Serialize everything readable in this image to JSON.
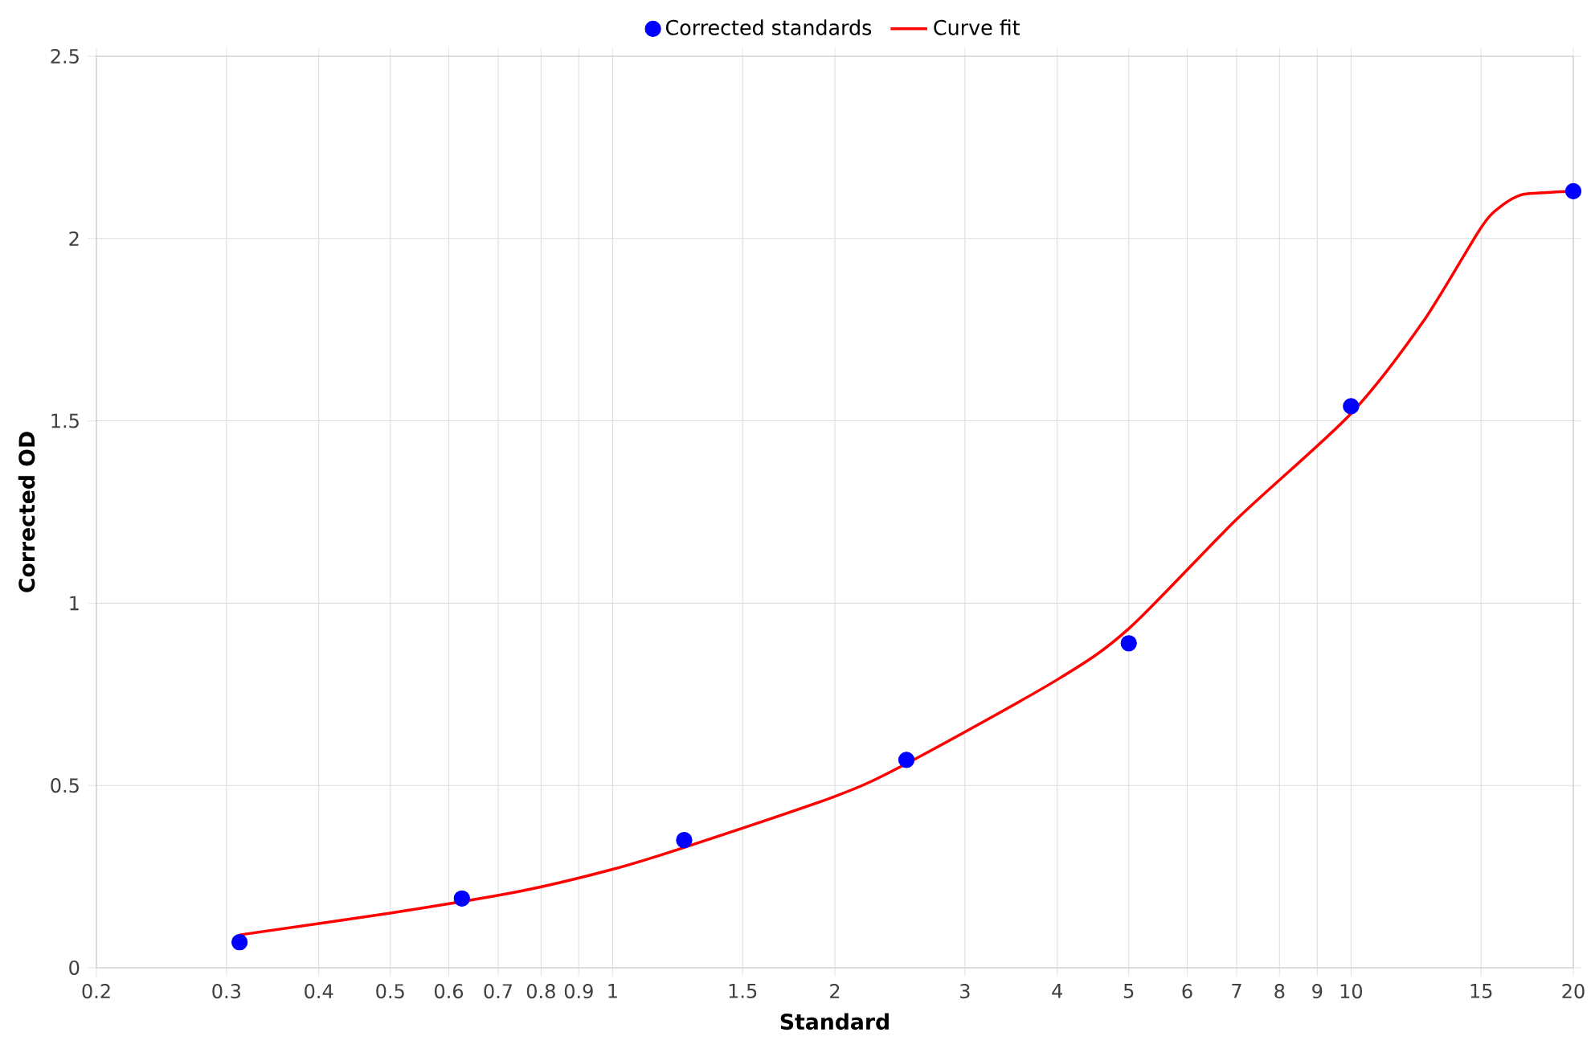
{
  "chart_data": {
    "type": "scatter",
    "xlabel": "Standard",
    "ylabel": "Corrected OD",
    "log": "x",
    "grid": true,
    "legend": "top",
    "xlim": [
      0.2,
      20
    ],
    "ylim": [
      0,
      2.5
    ],
    "xticks": [
      0.2,
      0.3,
      0.4,
      0.5,
      0.6,
      0.7,
      0.8,
      0.9,
      1,
      1.5,
      2,
      3,
      4,
      5,
      6,
      7,
      8,
      9,
      10,
      15,
      20
    ],
    "yticks": [
      0,
      0.5,
      1,
      1.5,
      2,
      2.5
    ],
    "series": [
      {
        "name": "Corrected standards",
        "marker": "circle",
        "color": "#0000ff",
        "x": [
          0.3125,
          0.625,
          1.25,
          2.5,
          5,
          10,
          20
        ],
        "values": [
          0.07,
          0.19,
          0.35,
          0.57,
          0.89,
          1.54,
          2.13
        ]
      },
      {
        "name": "Curve fit",
        "type": "line",
        "marker": "none",
        "color": "#ff0000",
        "x": [
          0.3125,
          0.5,
          0.75,
          1,
          1.25,
          2,
          2.5,
          4,
          5,
          7,
          10,
          12.5,
          15,
          16,
          17,
          18,
          20
        ],
        "values": [
          0.09,
          0.15,
          0.21,
          0.27,
          0.33,
          0.47,
          0.56,
          0.79,
          0.93,
          1.23,
          1.52,
          1.77,
          2.03,
          2.09,
          2.12,
          2.125,
          2.13
        ]
      }
    ]
  }
}
